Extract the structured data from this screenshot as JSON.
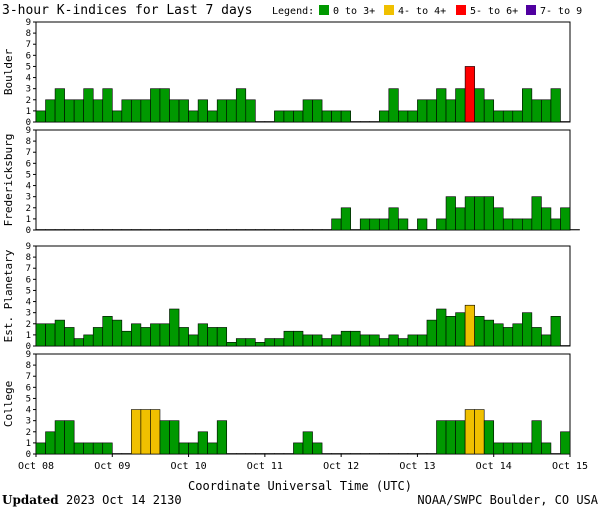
{
  "chart_data": {
    "type": "bar",
    "title": "3-hour K-indices for Last 7 days",
    "legend": {
      "title": "Legend:",
      "items": [
        {
          "label": "0 to 3+",
          "color": "#009900"
        },
        {
          "label": "4- to 4+",
          "color": "#f0c000"
        },
        {
          "label": "5- to 6+",
          "color": "#ff0000"
        },
        {
          "label": "7- to 9",
          "color": "#5000a0"
        }
      ]
    },
    "bar_outline_color": "#000000",
    "ylim": [
      0,
      9
    ],
    "yticks": [
      "0",
      "1",
      "2",
      "3",
      "4",
      "5",
      "6",
      "7",
      "8",
      "9"
    ],
    "xlabel": "Coordinate Universal Time (UTC)",
    "xticks": [
      "Oct 08",
      "Oct 09",
      "Oct 10",
      "Oct 11",
      "Oct 12",
      "Oct 13",
      "Oct 14",
      "Oct 15"
    ],
    "grid": false,
    "panels": [
      {
        "name": "Boulder",
        "values": [
          1,
          2,
          3,
          2,
          2,
          3,
          2,
          3,
          1,
          2,
          2,
          2,
          3,
          3,
          2,
          2,
          1,
          2,
          1,
          2,
          2,
          3,
          2,
          0,
          0,
          1,
          1,
          1,
          2,
          2,
          1,
          1,
          1,
          0,
          0,
          0,
          1,
          3,
          1,
          1,
          2,
          2,
          3,
          2,
          3,
          5,
          3,
          2,
          1,
          1,
          1,
          3,
          2,
          2,
          3,
          0
        ]
      },
      {
        "name": "Fredericksburg",
        "values": [
          0,
          0,
          0,
          0,
          0,
          0,
          0,
          0,
          0,
          0,
          0,
          0,
          0,
          0,
          0,
          0,
          0,
          0,
          0,
          0,
          0,
          0,
          0,
          0,
          0,
          0,
          0,
          0,
          0,
          0,
          0,
          1,
          2,
          0,
          1,
          1,
          1,
          2,
          1,
          0,
          1,
          0,
          1,
          3,
          2,
          3,
          3,
          3,
          2,
          1,
          1,
          1,
          3,
          2,
          1,
          2,
          0
        ]
      },
      {
        "name": "Est. Planetary",
        "values": [
          2,
          2,
          2.33,
          1.67,
          0.67,
          1,
          1.67,
          2.67,
          2.33,
          1.33,
          2,
          1.67,
          2,
          2,
          3.33,
          1.67,
          1,
          2,
          1.67,
          1.67,
          0.33,
          0.67,
          0.67,
          0.33,
          0.67,
          0.67,
          1.33,
          1.33,
          1,
          1,
          0.67,
          1,
          1.33,
          1.33,
          1,
          1,
          0.67,
          1,
          0.67,
          1,
          1,
          2.33,
          3.33,
          2.67,
          3,
          3.67,
          2.67,
          2.33,
          2,
          1.67,
          2,
          3,
          1.67,
          1,
          2.67,
          0
        ]
      },
      {
        "name": "College",
        "values": [
          1,
          2,
          3,
          3,
          1,
          1,
          1,
          1,
          0,
          0,
          4,
          4,
          4,
          3,
          3,
          1,
          1,
          2,
          1,
          3,
          0,
          0,
          0,
          0,
          0,
          0,
          0,
          1,
          2,
          1,
          0,
          0,
          0,
          0,
          0,
          0,
          0,
          0,
          0,
          0,
          0,
          0,
          3,
          3,
          3,
          4,
          4,
          3,
          1,
          1,
          1,
          1,
          3,
          1,
          0,
          2
        ]
      }
    ]
  },
  "footer": {
    "updated_label": "Updated",
    "updated_value": "2023 Oct 14 2130",
    "source": "NOAA/SWPC Boulder, CO USA"
  }
}
